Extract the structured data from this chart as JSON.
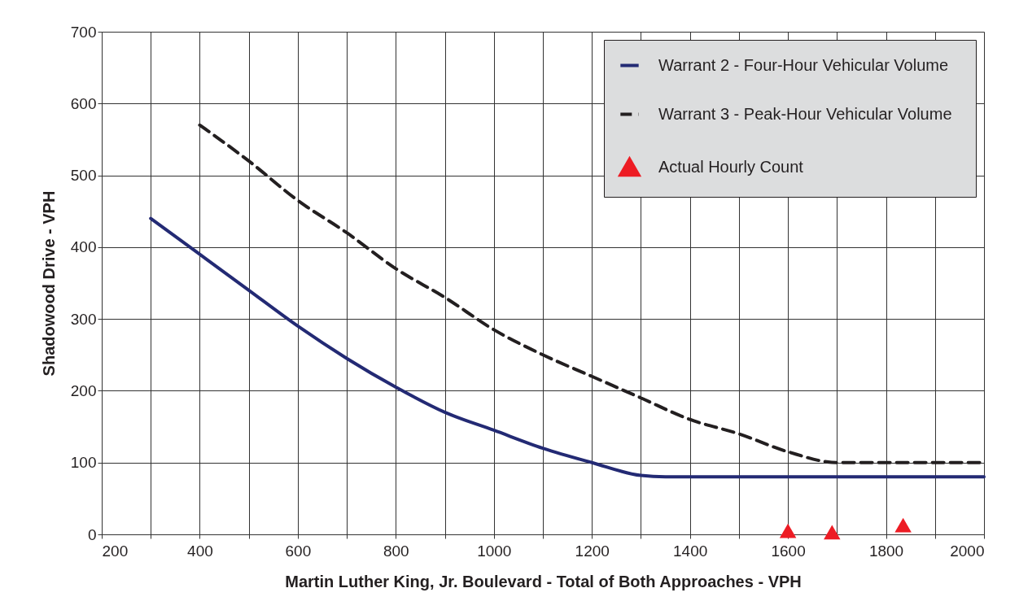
{
  "chart_data": {
    "type": "line",
    "xlabel": "Martin Luther King, Jr. Boulevard - Total of Both Approaches - VPH",
    "ylabel": "Shadowood Drive - VPH",
    "xlim": [
      200,
      2000
    ],
    "ylim": [
      0,
      700
    ],
    "xticks": [
      200,
      {
        "value": 300,
        "label": null
      },
      400,
      {
        "value": 500,
        "label": null
      },
      600,
      {
        "value": 700,
        "label": null
      },
      800,
      {
        "value": 900,
        "label": null
      },
      1000,
      {
        "value": 1100,
        "label": null
      },
      1200,
      {
        "value": 1300,
        "label": null
      },
      1400,
      {
        "value": 1500,
        "label": null
      },
      1600,
      {
        "value": 1700,
        "label": null
      },
      1800,
      {
        "value": 1900,
        "label": null
      },
      2000
    ],
    "yticks": [
      0,
      100,
      200,
      300,
      400,
      500,
      600,
      700
    ],
    "grid": true,
    "legend": "top right",
    "series": [
      {
        "name": "Warrant 2   - Four-Hour Vehicular Volume",
        "line_style": "solid",
        "marker": "none",
        "color": "#232a74",
        "x": [
          300,
          400,
          500,
          600,
          700,
          800,
          900,
          1000,
          1100,
          1200,
          1300,
          1350,
          1400,
          1500,
          1600,
          1700,
          1800,
          1900,
          2000
        ],
        "values": [
          440,
          390,
          340,
          290,
          245,
          205,
          170,
          145,
          120,
          100,
          82,
          80,
          80,
          80,
          80,
          80,
          80,
          80,
          80
        ]
      },
      {
        "name": "Warrant 3   - Peak-Hour Vehicular Volume",
        "line_style": "dashed",
        "marker": "none",
        "color": "#231f20",
        "x": [
          400,
          500,
          600,
          700,
          800,
          900,
          1000,
          1100,
          1200,
          1300,
          1400,
          1500,
          1600,
          1700,
          1750,
          1800,
          1900,
          2000
        ],
        "values": [
          570,
          520,
          465,
          420,
          370,
          330,
          285,
          250,
          220,
          190,
          160,
          140,
          115,
          100,
          100,
          100,
          100,
          100
        ]
      },
      {
        "name": "Actual Hourly Count",
        "type": "scatter",
        "marker": "triangle",
        "color": "#ed1c24",
        "x": [
          1600,
          1690,
          1835
        ],
        "values": [
          5,
          3,
          13
        ]
      }
    ]
  }
}
